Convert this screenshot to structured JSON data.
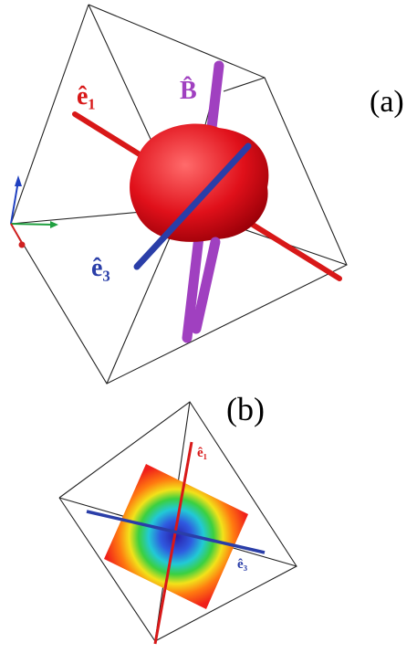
{
  "panels": [
    {
      "label": "(a)",
      "annotations": [
        "ê₁",
        "B̂",
        "ê₃"
      ]
    },
    {
      "label": "(b)",
      "annotations": [
        "ê₁",
        "ê₃"
      ]
    }
  ]
}
